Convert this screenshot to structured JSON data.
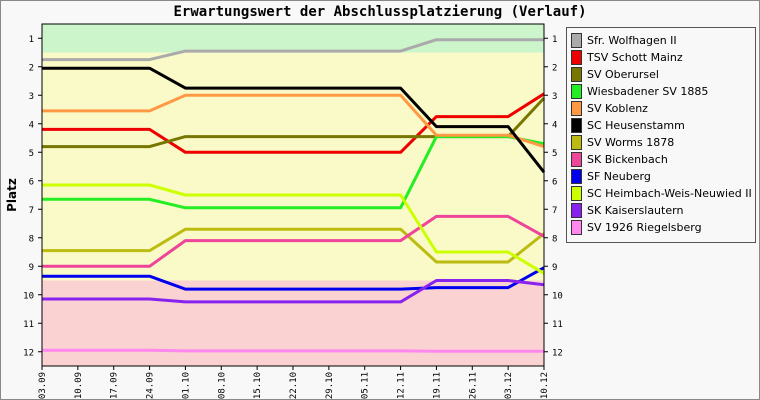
{
  "chart_data": {
    "type": "line",
    "title": "Erwartungswert der Abschlussplatzierung (Verlauf)",
    "ylabel": "Platz",
    "xlabel": "",
    "ylim": [
      0.5,
      12.5
    ],
    "y_reversed": true,
    "y_ticks": [
      "1",
      "2",
      "3",
      "4",
      "5",
      "6",
      "7",
      "8",
      "9",
      "10",
      "11",
      "12"
    ],
    "categories": [
      "03.09",
      "10.09",
      "17.09",
      "24.09",
      "01.10",
      "08.10",
      "15.10",
      "22.10",
      "29.10",
      "05.11",
      "12.11",
      "19.11",
      "26.11",
      "03.12",
      "10.12"
    ],
    "bands": [
      {
        "from": 0.5,
        "to": 1.5,
        "color": "#ccf5cc"
      },
      {
        "from": 1.5,
        "to": 9.5,
        "color": "#fafac8"
      },
      {
        "from": 9.5,
        "to": 12.5,
        "color": "#fad2d2"
      }
    ],
    "grid": false,
    "legend_position": "right",
    "series": [
      {
        "name": "Sfr. Wolfhagen II",
        "color": "#aaaaaa",
        "values": [
          1.75,
          1.75,
          1.75,
          1.75,
          1.45,
          1.45,
          1.45,
          1.45,
          1.45,
          1.45,
          1.45,
          1.05,
          1.05,
          1.05,
          1.05
        ]
      },
      {
        "name": "TSV Schott Mainz",
        "color": "#ee0000",
        "values": [
          4.2,
          4.2,
          4.2,
          4.2,
          5.0,
          5.0,
          5.0,
          5.0,
          5.0,
          5.0,
          5.0,
          3.75,
          3.75,
          3.75,
          2.95
        ]
      },
      {
        "name": "SV Oberursel",
        "color": "#777700",
        "values": [
          4.8,
          4.8,
          4.8,
          4.8,
          4.45,
          4.45,
          4.45,
          4.45,
          4.45,
          4.45,
          4.45,
          4.45,
          4.45,
          4.45,
          3.1
        ]
      },
      {
        "name": "Wiesbadener SV 1885",
        "color": "#22ee22",
        "values": [
          6.65,
          6.65,
          6.65,
          6.65,
          6.95,
          6.95,
          6.95,
          6.95,
          6.95,
          6.95,
          6.95,
          4.45,
          4.45,
          4.45,
          4.7
        ]
      },
      {
        "name": "SV Koblenz",
        "color": "#ff9944",
        "values": [
          3.55,
          3.55,
          3.55,
          3.55,
          3.0,
          3.0,
          3.0,
          3.0,
          3.0,
          3.0,
          3.0,
          4.4,
          4.4,
          4.4,
          4.8
        ]
      },
      {
        "name": "SC Heusenstamm",
        "color": "#000000",
        "values": [
          2.05,
          2.05,
          2.05,
          2.05,
          2.75,
          2.75,
          2.75,
          2.75,
          2.75,
          2.75,
          2.75,
          4.1,
          4.1,
          4.1,
          5.7
        ]
      },
      {
        "name": "SV Worms 1878",
        "color": "#bbbb11",
        "values": [
          8.45,
          8.45,
          8.45,
          8.45,
          7.7,
          7.7,
          7.7,
          7.7,
          7.7,
          7.7,
          7.7,
          8.85,
          8.85,
          8.85,
          7.85
        ]
      },
      {
        "name": "SK Bickenbach",
        "color": "#ee4499",
        "values": [
          9.0,
          9.0,
          9.0,
          9.0,
          8.1,
          8.1,
          8.1,
          8.1,
          8.1,
          8.1,
          8.1,
          7.25,
          7.25,
          7.25,
          7.95
        ]
      },
      {
        "name": "SF Neuberg",
        "color": "#0000ee",
        "values": [
          9.35,
          9.35,
          9.35,
          9.35,
          9.8,
          9.8,
          9.8,
          9.8,
          9.8,
          9.8,
          9.8,
          9.75,
          9.75,
          9.75,
          9.05
        ]
      },
      {
        "name": "SC Heimbach-Weis-Neuwied II",
        "color": "#ccff00",
        "values": [
          6.15,
          6.15,
          6.15,
          6.15,
          6.5,
          6.5,
          6.5,
          6.5,
          6.5,
          6.5,
          6.5,
          8.5,
          8.5,
          8.5,
          9.25
        ]
      },
      {
        "name": "SK Kaiserslautern",
        "color": "#8822ee",
        "values": [
          10.15,
          10.15,
          10.15,
          10.15,
          10.25,
          10.25,
          10.25,
          10.25,
          10.25,
          10.25,
          10.25,
          9.5,
          9.5,
          9.5,
          9.65
        ]
      },
      {
        "name": "SV 1926 Riegelsberg",
        "color": "#ff88ee",
        "values": [
          11.95,
          11.95,
          11.95,
          11.95,
          11.97,
          11.97,
          11.97,
          11.97,
          11.97,
          11.97,
          11.97,
          11.98,
          11.98,
          11.98,
          11.98
        ]
      }
    ]
  }
}
